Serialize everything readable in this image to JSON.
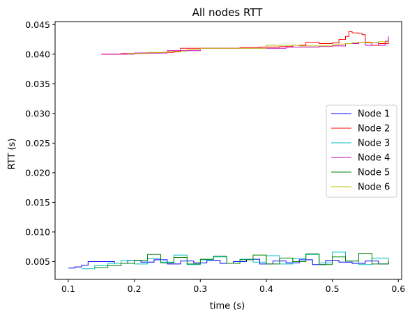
{
  "chart_data": {
    "type": "line",
    "title": "All nodes RTT",
    "xlabel": "time (s)",
    "ylabel": "RTT (s)",
    "xlim": [
      0.08,
      0.605
    ],
    "ylim": [
      0.002,
      0.0455
    ],
    "xticks": [
      0.1,
      0.2,
      0.3,
      0.4,
      0.5,
      0.6
    ],
    "xtick_labels": [
      "0.1",
      "0.2",
      "0.3",
      "0.4",
      "0.5",
      "0.6"
    ],
    "yticks": [
      0.005,
      0.01,
      0.015,
      0.02,
      0.025,
      0.03,
      0.035,
      0.04,
      0.045
    ],
    "ytick_labels": [
      "0.005",
      "0.010",
      "0.015",
      "0.020",
      "0.025",
      "0.030",
      "0.035",
      "0.040",
      "0.045"
    ],
    "grid": false,
    "legend_position": "center-right",
    "series": [
      {
        "name": "Node 1",
        "color": "#0000ff",
        "x": [
          0.1,
          0.11,
          0.12,
          0.13,
          0.15,
          0.17,
          0.19,
          0.21,
          0.23,
          0.25,
          0.27,
          0.29,
          0.31,
          0.33,
          0.35,
          0.37,
          0.39,
          0.41,
          0.43,
          0.45,
          0.47,
          0.49,
          0.51,
          0.53,
          0.55,
          0.57,
          0.585
        ],
        "y": [
          0.0039,
          0.0041,
          0.0044,
          0.005,
          0.005,
          0.0047,
          0.0052,
          0.0049,
          0.0053,
          0.0046,
          0.0051,
          0.0048,
          0.0052,
          0.0047,
          0.005,
          0.0054,
          0.0046,
          0.0051,
          0.0048,
          0.0053,
          0.0045,
          0.0052,
          0.0049,
          0.0047,
          0.0051,
          0.0046,
          0.005
        ]
      },
      {
        "name": "Node 2",
        "color": "#ff0000",
        "x": [
          0.15,
          0.18,
          0.21,
          0.24,
          0.26,
          0.27,
          0.3,
          0.33,
          0.36,
          0.39,
          0.42,
          0.44,
          0.46,
          0.48,
          0.5,
          0.51,
          0.52,
          0.525,
          0.53,
          0.54,
          0.545,
          0.55,
          0.56,
          0.57,
          0.585
        ],
        "y": [
          0.04,
          0.0401,
          0.0402,
          0.0403,
          0.0404,
          0.041,
          0.041,
          0.041,
          0.0411,
          0.0412,
          0.0413,
          0.0415,
          0.042,
          0.0418,
          0.0419,
          0.0425,
          0.043,
          0.0438,
          0.0436,
          0.0435,
          0.0433,
          0.042,
          0.0415,
          0.0418,
          0.042
        ]
      },
      {
        "name": "Node 3",
        "color": "#00bfbf",
        "x": [
          0.12,
          0.14,
          0.16,
          0.18,
          0.2,
          0.22,
          0.24,
          0.26,
          0.28,
          0.3,
          0.32,
          0.34,
          0.36,
          0.38,
          0.4,
          0.42,
          0.44,
          0.46,
          0.48,
          0.5,
          0.52,
          0.54,
          0.56,
          0.585
        ],
        "y": [
          0.0038,
          0.0043,
          0.0047,
          0.0052,
          0.0046,
          0.0055,
          0.0049,
          0.0061,
          0.0045,
          0.0053,
          0.0058,
          0.0047,
          0.0054,
          0.0049,
          0.006,
          0.0046,
          0.0055,
          0.0062,
          0.0048,
          0.0066,
          0.0051,
          0.0045,
          0.0056,
          0.0049
        ]
      },
      {
        "name": "Node 4",
        "color": "#bf00bf",
        "x": [
          0.15,
          0.2,
          0.25,
          0.3,
          0.35,
          0.4,
          0.43,
          0.45,
          0.48,
          0.5,
          0.52,
          0.54,
          0.55,
          0.56,
          0.57,
          0.58,
          0.585
        ],
        "y": [
          0.04,
          0.0402,
          0.0406,
          0.041,
          0.041,
          0.041,
          0.0412,
          0.0412,
          0.0413,
          0.0414,
          0.0418,
          0.042,
          0.0415,
          0.042,
          0.0415,
          0.0422,
          0.043
        ]
      },
      {
        "name": "Node 5",
        "color": "#008000",
        "x": [
          0.14,
          0.16,
          0.18,
          0.2,
          0.22,
          0.24,
          0.26,
          0.28,
          0.3,
          0.32,
          0.34,
          0.36,
          0.38,
          0.4,
          0.42,
          0.44,
          0.46,
          0.48,
          0.5,
          0.52,
          0.54,
          0.56,
          0.585
        ],
        "y": [
          0.004,
          0.0043,
          0.0047,
          0.0052,
          0.0062,
          0.0048,
          0.0057,
          0.0046,
          0.0054,
          0.0059,
          0.0047,
          0.0053,
          0.0061,
          0.0046,
          0.0056,
          0.005,
          0.0063,
          0.0045,
          0.0058,
          0.0051,
          0.0064,
          0.0046,
          0.0052
        ]
      },
      {
        "name": "Node 6",
        "color": "#bfbf00",
        "x": [
          0.19,
          0.22,
          0.25,
          0.28,
          0.3,
          0.33,
          0.36,
          0.38,
          0.4,
          0.43,
          0.45,
          0.47,
          0.49,
          0.5,
          0.51,
          0.52,
          0.53,
          0.54,
          0.55,
          0.56,
          0.57,
          0.585
        ],
        "y": [
          0.0401,
          0.0403,
          0.0405,
          0.0408,
          0.041,
          0.041,
          0.041,
          0.041,
          0.0415,
          0.0415,
          0.0414,
          0.0414,
          0.0414,
          0.0416,
          0.0417,
          0.0418,
          0.042,
          0.042,
          0.0419,
          0.042,
          0.0421,
          0.042
        ]
      }
    ]
  }
}
